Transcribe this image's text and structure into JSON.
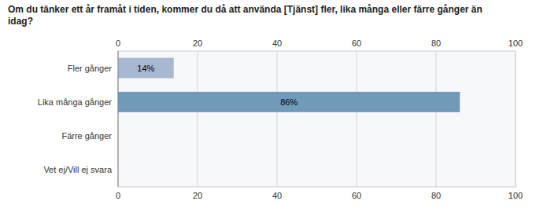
{
  "chart_data": {
    "type": "bar",
    "orientation": "horizontal",
    "title": "Om du tänker ett år framåt i tiden, kommer du då att använda [Tjänst] fler, lika många eller färre gånger än\nidag?",
    "categories": [
      "Fler gånger",
      "Lika många gånger",
      "Färre gånger",
      "Vet ej/Vill ej svara"
    ],
    "values": [
      14,
      86,
      0,
      0
    ],
    "value_labels": [
      "14%",
      "86%",
      null,
      null
    ],
    "data_labels": true,
    "colors": [
      "#a8b8d0",
      "#6f9ab8",
      "#a8b8d0",
      "#a8b8d0"
    ],
    "xlim": [
      0,
      100
    ],
    "xticks": [
      0,
      20,
      40,
      60,
      80,
      100
    ],
    "grid": true
  }
}
